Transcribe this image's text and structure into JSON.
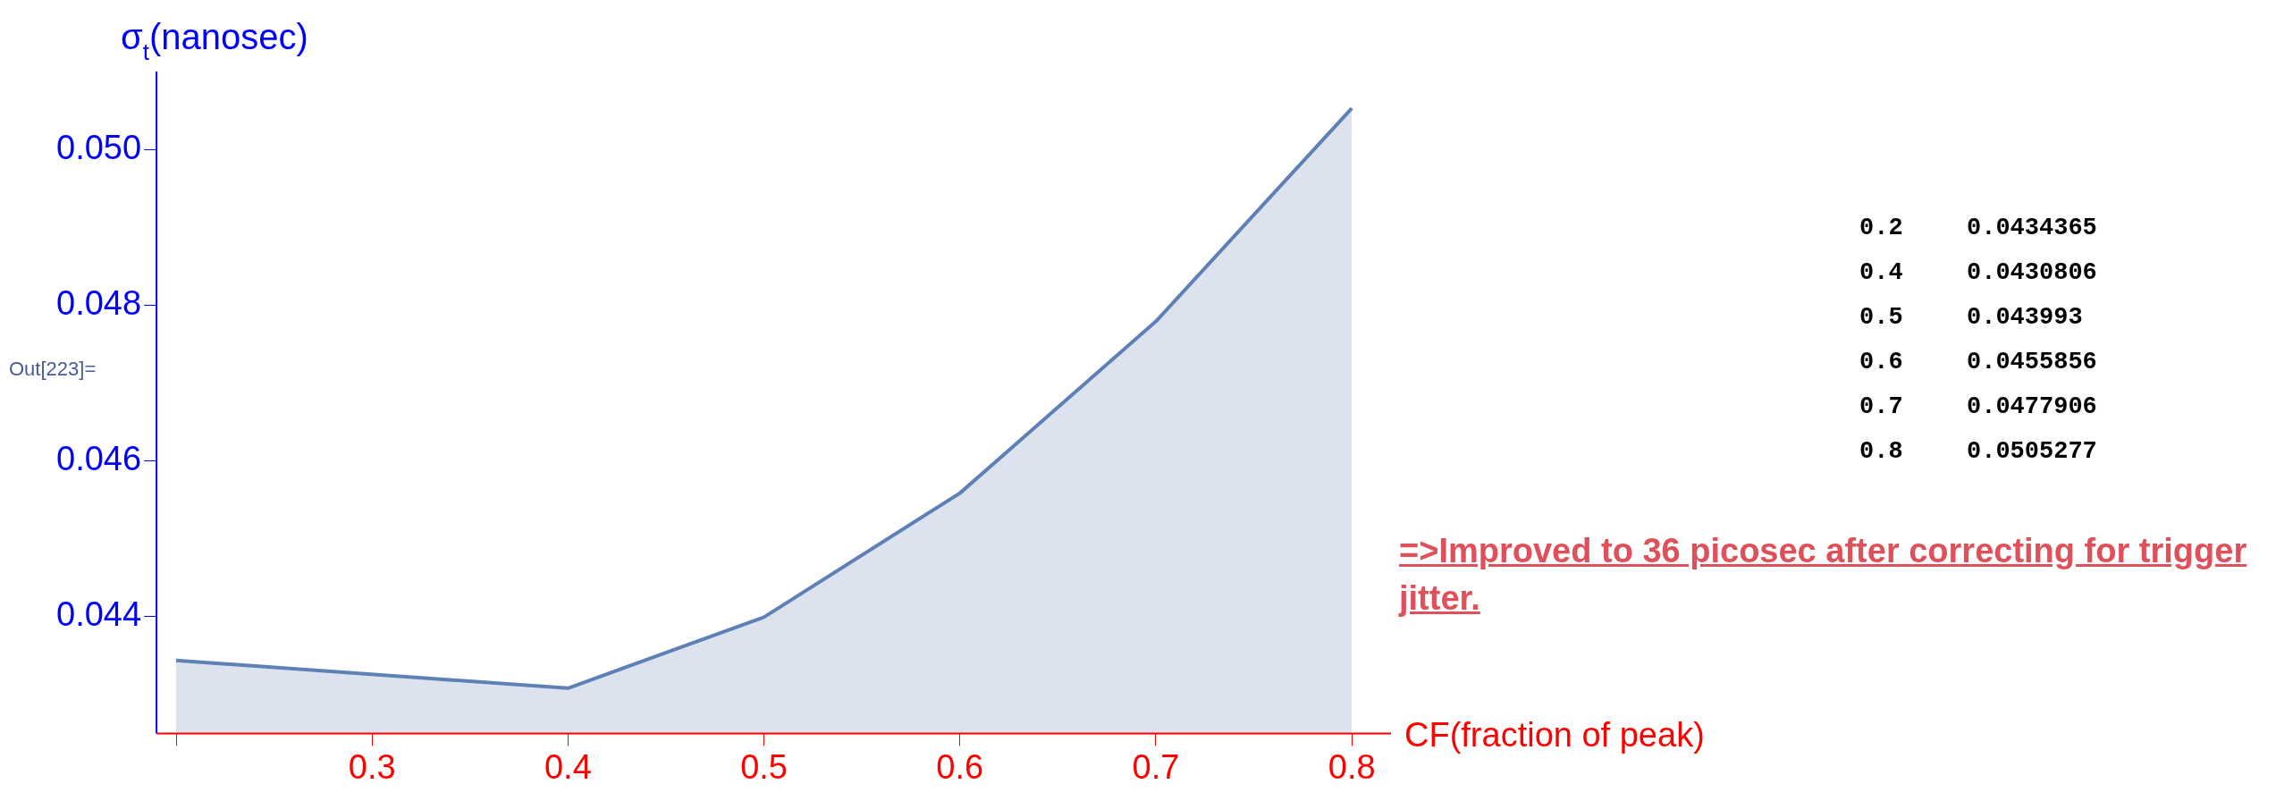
{
  "chart_data": {
    "type": "area",
    "ylabel": "σ$_{t}$(nanosec)",
    "xlabel": "CF(fraction of peak)",
    "x": [
      0.2,
      0.4,
      0.5,
      0.6,
      0.7,
      0.8
    ],
    "series": [
      {
        "color": "#5e81b5",
        "values": [
          0.0434365,
          0.0430806,
          0.043993,
          0.0455856,
          0.0477906,
          0.0505277
        ]
      }
    ],
    "xlim": [
      0.19,
      0.82
    ],
    "xticks": [
      {
        "value": 0.2,
        "label": null
      },
      0.3,
      0.4,
      0.5,
      0.6,
      0.7,
      0.8
    ],
    "ylim": [
      0.0425,
      0.051
    ],
    "yticks": [
      {
        "value": 0.044,
        "label": "0.044"
      },
      {
        "value": 0.046,
        "label": "0.046"
      },
      {
        "value": 0.048,
        "label": "0.048"
      },
      {
        "value": 0.05,
        "label": "0.050"
      }
    ],
    "grid": false,
    "legend": false,
    "annotations": [
      "Out[223]=",
      "=>Improved to 36 picosec after correcting for trigger jitter.",
      "0.2",
      "0.0434365",
      "0.4",
      "0.0430806",
      "0.5",
      "0.043993",
      "0.6",
      "0.0455856",
      "0.7",
      "0.0477906",
      "0.8",
      "0.0505277"
    ]
  }
}
